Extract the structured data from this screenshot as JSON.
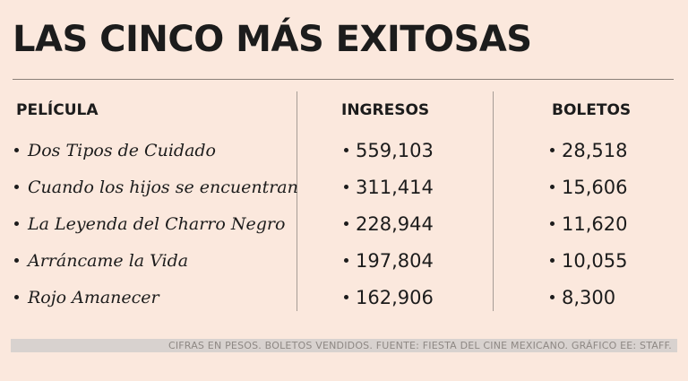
{
  "title": "LAS CINCO MÁS EXITOSAS",
  "columns": {
    "film": "PELÍCULA",
    "ingresos": "INGRESOS",
    "boletos": "BOLETOS"
  },
  "rows": [
    {
      "film": "Dos Tipos de Cuidado",
      "ingresos": "559,103",
      "boletos": "28,518"
    },
    {
      "film": "Cuando los hijos se encuentran",
      "ingresos": "311,414",
      "boletos": "15,606"
    },
    {
      "film": "La Leyenda del Charro Negro",
      "ingresos": "228,944",
      "boletos": "11,620"
    },
    {
      "film": "Arráncame la Vida",
      "ingresos": "197,804",
      "boletos": "10,055"
    },
    {
      "film": "Rojo Amanecer",
      "ingresos": "162,906",
      "boletos": "8,300"
    }
  ],
  "footer": "CIFRAS EN PESOS. BOLETOS VENDIDOS. FUENTE: FIESTA DEL CINE MEXICANO. GRÁFICO EE: STAFF."
}
